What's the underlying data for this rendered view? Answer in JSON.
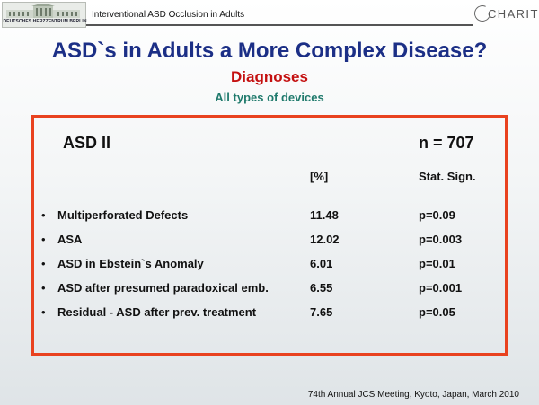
{
  "header": {
    "logo_text": "DEUTSCHES HERZZENTRUM BERLIN",
    "title": "Interventional ASD Occlusion in Adults",
    "brand": "CHARITÉ"
  },
  "slide": {
    "title": "ASD`s in Adults a More Complex Disease?",
    "subtitle": "Diagnoses",
    "subsubtitle": "All types of devices"
  },
  "table": {
    "group": "ASD II",
    "n": "n = 707",
    "col_pct": "[%]",
    "col_sig": "Stat. Sign.",
    "rows": [
      {
        "bullet": "•",
        "label": "Multiperforated Defects",
        "pct": "11.48",
        "sig": "p=0.09"
      },
      {
        "bullet": "•",
        "label": "ASA",
        "pct": "12.02",
        "sig": "p=0.003"
      },
      {
        "bullet": "•",
        "label": "ASD in Ebstein`s Anomaly",
        "pct": "6.01",
        "sig": "p=0.01"
      },
      {
        "bullet": "•",
        "label": "ASD after presumed paradoxical emb.",
        "pct": "6.55",
        "sig": "p=0.001"
      },
      {
        "bullet": "•",
        "label": "Residual - ASD after prev. treatment",
        "pct": "7.65",
        "sig": "p=0.05"
      }
    ]
  },
  "footer": "74th Annual JCS Meeting, Kyoto, Japan, March 2010",
  "colors": {
    "title": "#1c2f86",
    "subtitle": "#c41010",
    "subsubtitle": "#1f7a6c",
    "box_border": "#e9421f"
  },
  "icons": [
    "hospital-building-logo",
    "charite-logo"
  ]
}
